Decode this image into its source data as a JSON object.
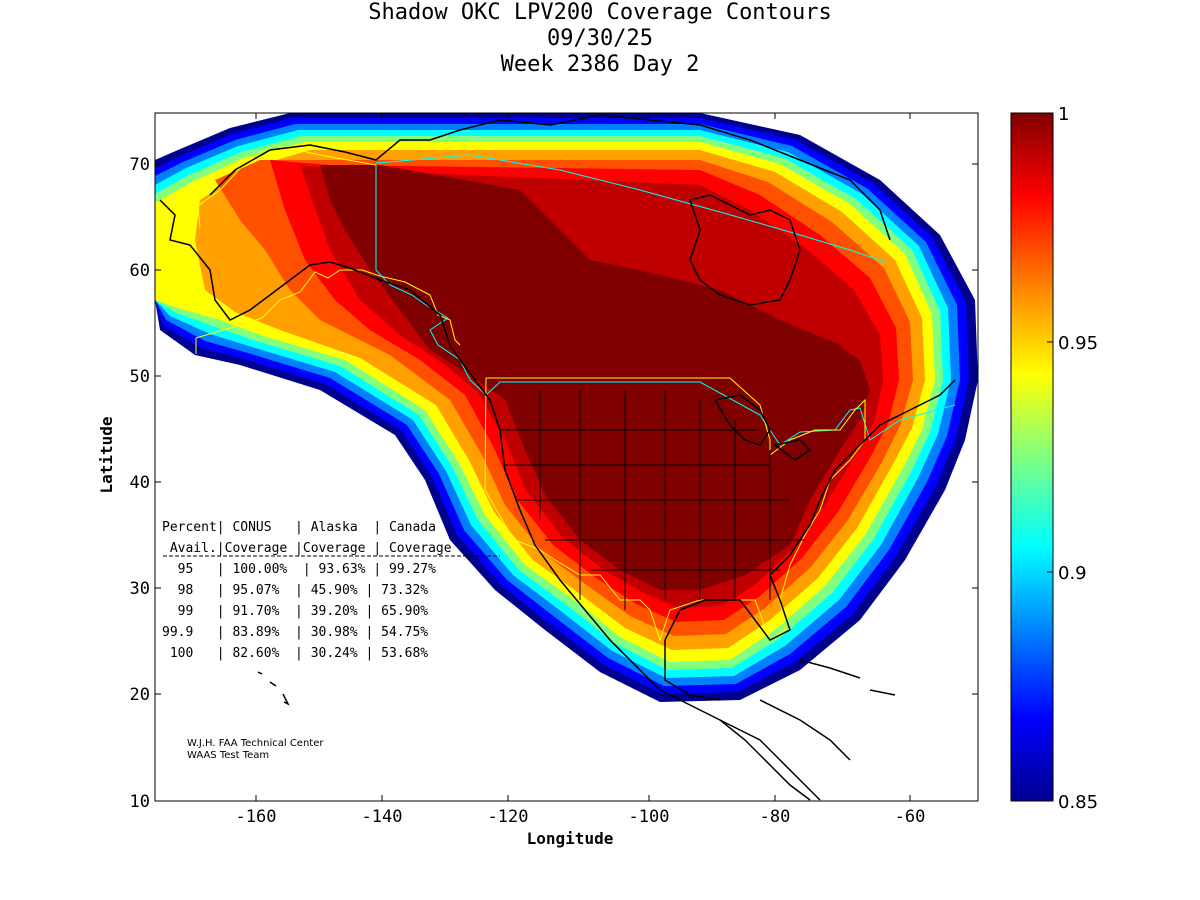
{
  "title": {
    "line1": "Shadow OKC LPV200 Coverage Contours",
    "line2": "09/30/25",
    "line3": "Week 2386 Day 2"
  },
  "axes": {
    "xlabel": "Longitude",
    "ylabel": "Latitude",
    "xlim": [
      -175,
      -50
    ],
    "ylim": [
      10,
      75
    ],
    "xticks": [
      -160,
      -140,
      -120,
      -100,
      -80,
      -60
    ],
    "yticks": [
      10,
      20,
      30,
      40,
      50,
      60,
      70
    ],
    "xtick_labels": [
      "-160",
      "-140",
      "-120",
      "-100",
      "-80",
      "-60"
    ],
    "ytick_labels": [
      "10",
      "20",
      "30",
      "40",
      "50",
      "60",
      "70"
    ]
  },
  "colorbar": {
    "min": 0.85,
    "max": 1,
    "ticks": [
      0.85,
      0.9,
      0.95,
      1
    ],
    "tick_labels": [
      "0.85",
      "0.9",
      "0.95",
      "1"
    ],
    "colormap": [
      "#00008f",
      "#0000ff",
      "#0080ff",
      "#00ffff",
      "#80ff80",
      "#ffff00",
      "#ff8000",
      "#ff0000",
      "#800000"
    ]
  },
  "table": {
    "header1": "Percent| CONUS   | Alaska  | Canada",
    "header2": " Avail.|Coverage |Coverage | Coverage",
    "rows": [
      "  95   | 100.00%  | 93.63% | 99.27%",
      "  98   | 95.07%  | 45.90% | 73.32%",
      "  99   | 91.70%  | 39.20% | 65.90%",
      "99.9   | 83.89%  | 30.98% | 54.75%",
      " 100   | 82.60%  | 30.24% | 53.68%"
    ]
  },
  "credit": {
    "line1": "W.J.H. FAA Technical Center",
    "line2": "WAAS Test Team"
  },
  "colors": {
    "coverage_core": "#800000",
    "boundary_yellow": "#ffff00",
    "boundary_cyan": "#00ffff",
    "coastline": "#000000"
  }
}
